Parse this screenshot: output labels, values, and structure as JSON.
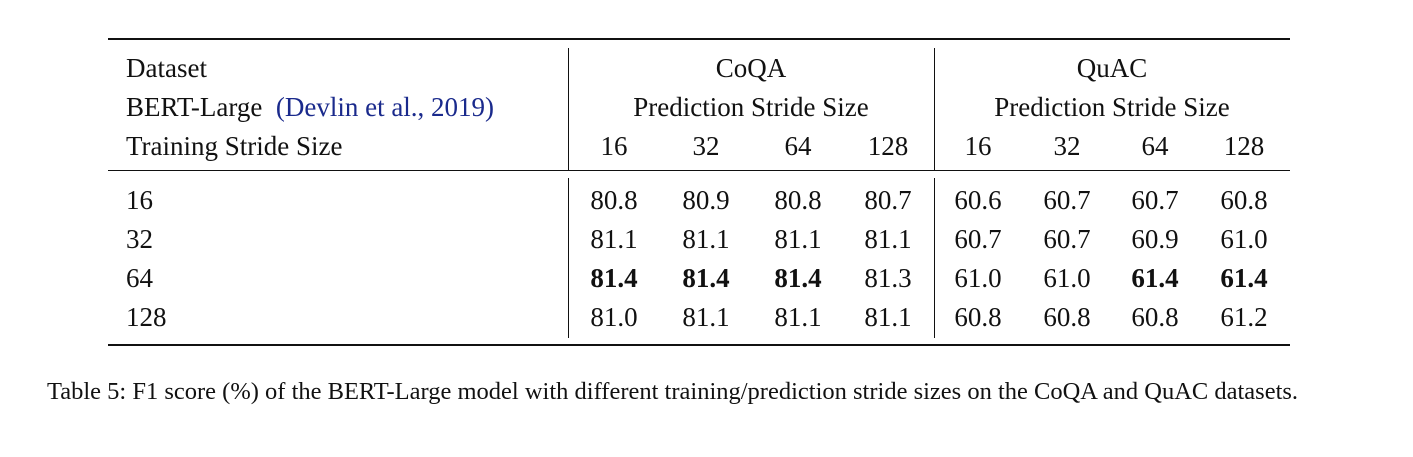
{
  "table": {
    "header": {
      "row1": {
        "label": "Dataset",
        "groups": [
          "CoQA",
          "QuAC"
        ]
      },
      "row2": {
        "label": "BERT-Large",
        "citation": "(Devlin et al., 2019)",
        "group_subtitle": "Prediction Stride Size"
      },
      "row3": {
        "label": "Training Stride Size",
        "coqa_strides": [
          "16",
          "32",
          "64",
          "128"
        ],
        "quac_strides": [
          "16",
          "32",
          "64",
          "128"
        ]
      }
    },
    "rows": [
      {
        "training_stride": "16",
        "coqa": [
          "80.8",
          "80.9",
          "80.8",
          "80.7"
        ],
        "quac": [
          "60.6",
          "60.7",
          "60.7",
          "60.8"
        ],
        "coqa_bold": [
          false,
          false,
          false,
          false
        ],
        "quac_bold": [
          false,
          false,
          false,
          false
        ]
      },
      {
        "training_stride": "32",
        "coqa": [
          "81.1",
          "81.1",
          "81.1",
          "81.1"
        ],
        "quac": [
          "60.7",
          "60.7",
          "60.9",
          "61.0"
        ],
        "coqa_bold": [
          false,
          false,
          false,
          false
        ],
        "quac_bold": [
          false,
          false,
          false,
          false
        ]
      },
      {
        "training_stride": "64",
        "coqa": [
          "81.4",
          "81.4",
          "81.4",
          "81.3"
        ],
        "quac": [
          "61.0",
          "61.0",
          "61.4",
          "61.4"
        ],
        "coqa_bold": [
          true,
          true,
          true,
          false
        ],
        "quac_bold": [
          false,
          false,
          true,
          true
        ]
      },
      {
        "training_stride": "128",
        "coqa": [
          "81.0",
          "81.1",
          "81.1",
          "81.1"
        ],
        "quac": [
          "60.8",
          "60.8",
          "60.8",
          "61.2"
        ],
        "coqa_bold": [
          false,
          false,
          false,
          false
        ],
        "quac_bold": [
          false,
          false,
          false,
          false
        ]
      }
    ]
  },
  "caption": "Table 5: F1 score (%) of the BERT-Large model with different training/prediction stride sizes on the CoQA and QuAC datasets."
}
